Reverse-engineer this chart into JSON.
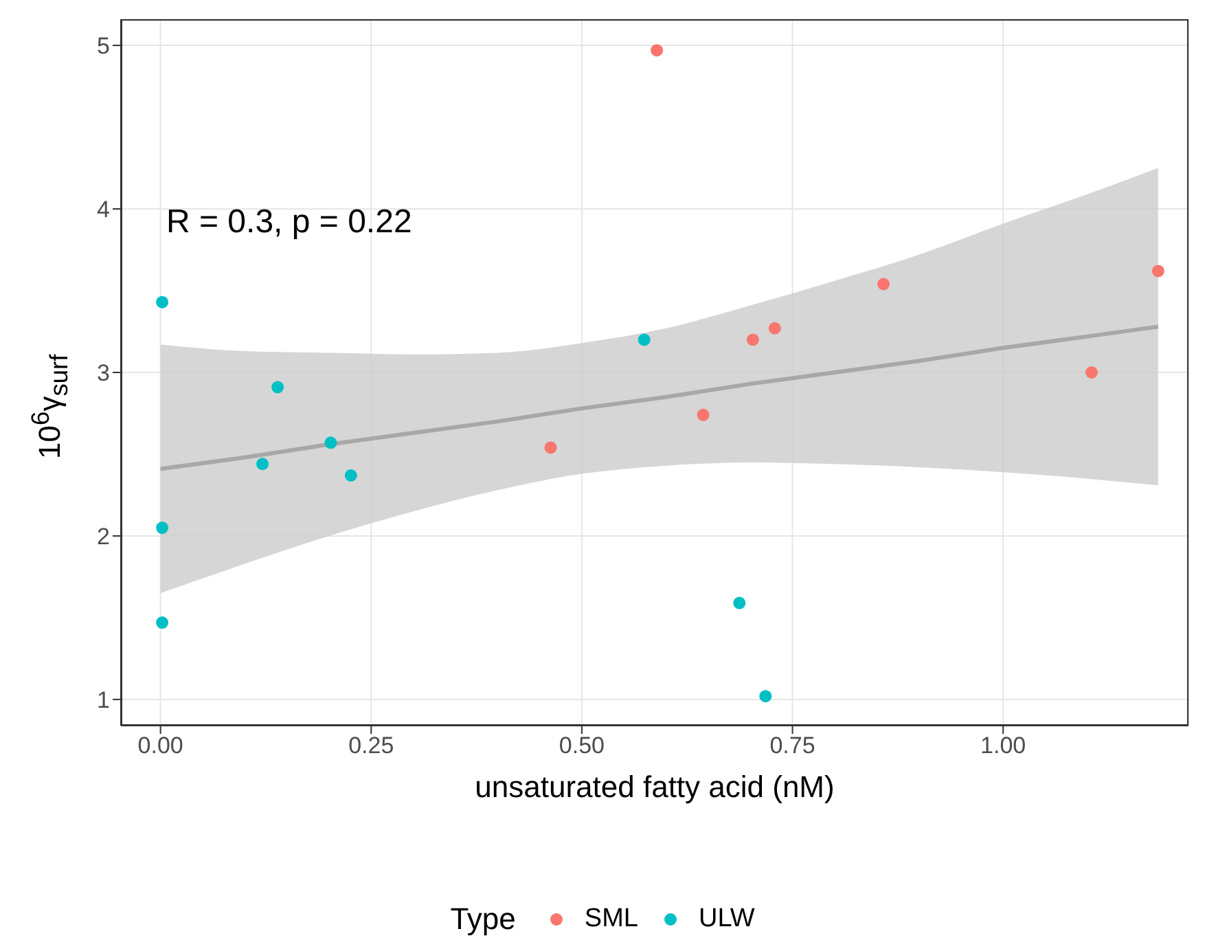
{
  "chart_data": {
    "type": "scatter",
    "xlabel": "unsaturated fatty acid (nM)",
    "ylabel": "10$^{6}$γ$_{surf}$",
    "legend_title": "Type",
    "legend": "bottom",
    "grid": true,
    "marker": "circle",
    "xlim": [
      -0.047,
      1.22
    ],
    "xticks": [
      {
        "value": 0,
        "label": "0.00"
      },
      {
        "value": 0.25,
        "label": "0.25"
      },
      {
        "value": 0.5,
        "label": "0.50"
      },
      {
        "value": 0.75,
        "label": "0.75"
      },
      {
        "value": 1,
        "label": "1.00"
      }
    ],
    "ylim": [
      0.84,
      5.16
    ],
    "yticks": [
      1,
      2,
      3,
      4,
      5
    ],
    "annotations": [
      "R = 0.3, p = 0.22"
    ],
    "series": [
      {
        "type": "line",
        "marker": "none",
        "color": "#a8a8a8",
        "x": [
          0,
          0.1,
          0.2,
          0.3,
          0.4,
          0.5,
          0.6,
          0.7,
          0.8,
          0.9,
          1.0,
          1.1,
          1.184
        ],
        "values": [
          2.41,
          2.48,
          2.56,
          2.63,
          2.7,
          2.78,
          2.85,
          2.93,
          3.0,
          3.07,
          3.15,
          3.22,
          3.28
        ],
        "lower": [
          1.65,
          1.83,
          2.0,
          2.15,
          2.28,
          2.38,
          2.43,
          2.45,
          2.44,
          2.42,
          2.39,
          2.35,
          2.31
        ],
        "upper": [
          3.17,
          3.13,
          3.12,
          3.11,
          3.12,
          3.18,
          3.27,
          3.41,
          3.56,
          3.72,
          3.91,
          4.09,
          4.25
        ]
      },
      {
        "name": "SML",
        "color": "#f8766d",
        "x": [
          0.589,
          1.184,
          0.858,
          1.105,
          0.729,
          0.703,
          0.644,
          0.463
        ],
        "values": [
          4.97,
          3.62,
          3.54,
          3.0,
          3.27,
          3.2,
          2.74,
          2.54
        ]
      },
      {
        "name": "ULW",
        "color": "#00bfc4",
        "x": [
          0.002,
          0.002,
          0.002,
          0.139,
          0.121,
          0.202,
          0.226,
          0.574,
          0.687,
          0.718
        ],
        "values": [
          3.43,
          2.05,
          1.47,
          2.91,
          2.44,
          2.57,
          2.37,
          3.2,
          1.59,
          1.02
        ]
      }
    ]
  }
}
